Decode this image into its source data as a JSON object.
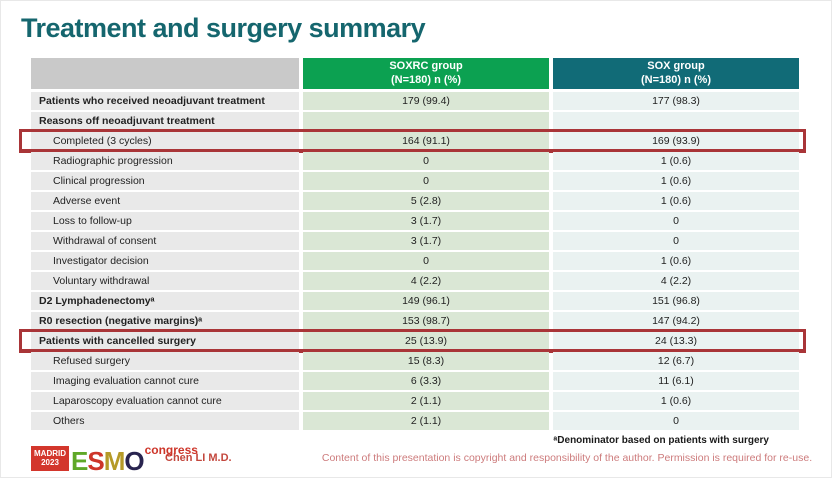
{
  "slide": {
    "title": "Treatment and surgery summary",
    "footnote": "ᵃDenominator based on patients with surgery",
    "copyright": "Content of this presentation is copyright and responsibility of the author.  Permission is required for re-use.",
    "author": "Chen LI M.D."
  },
  "logo": {
    "badge_line1": "MADRID",
    "badge_line2": "2023",
    "letters": [
      "E",
      "S",
      "M",
      "O"
    ],
    "congress": "congress"
  },
  "colors": {
    "title_teal": "#15666e",
    "soxrc_header_green": "#0ca151",
    "sox_header_teal": "#116b77",
    "label_cell_gray": "#e9e9e9",
    "soxrc_cell_green": "#dae7d5",
    "sox_cell_blue": "#eaf2f1",
    "highlight_box_red": "#a93538",
    "copyright_pink": "#cd7b7c",
    "author_red": "#c3473d",
    "logo_red": "#d3362c"
  },
  "table": {
    "columns": [
      {
        "label": "SOXRC group",
        "sub": "(N=180)  n (%)"
      },
      {
        "label": "SOX group",
        "sub": "(N=180)  n (%)"
      }
    ],
    "rows": [
      {
        "label": "Patients who received neoadjuvant treatment",
        "bold": true,
        "indent": false,
        "soxrc": "179 (99.4)",
        "sox": "177 (98.3)",
        "highlight": false
      },
      {
        "label": "Reasons off neoadjuvant treatment",
        "bold": true,
        "indent": false,
        "soxrc": "",
        "sox": "",
        "highlight": false
      },
      {
        "label": "Completed (3 cycles)",
        "bold": false,
        "indent": true,
        "soxrc": "164 (91.1)",
        "sox": "169 (93.9)",
        "highlight": true
      },
      {
        "label": "Radiographic progression",
        "bold": false,
        "indent": true,
        "soxrc": "0",
        "sox": "1 (0.6)",
        "highlight": false
      },
      {
        "label": "Clinical progression",
        "bold": false,
        "indent": true,
        "soxrc": "0",
        "sox": "1 (0.6)",
        "highlight": false
      },
      {
        "label": "Adverse event",
        "bold": false,
        "indent": true,
        "soxrc": "5 (2.8)",
        "sox": "1 (0.6)",
        "highlight": false
      },
      {
        "label": "Loss to follow-up",
        "bold": false,
        "indent": true,
        "soxrc": "3 (1.7)",
        "sox": "0",
        "highlight": false
      },
      {
        "label": "Withdrawal of consent",
        "bold": false,
        "indent": true,
        "soxrc": "3 (1.7)",
        "sox": "0",
        "highlight": false
      },
      {
        "label": "Investigator decision",
        "bold": false,
        "indent": true,
        "soxrc": "0",
        "sox": "1 (0.6)",
        "highlight": false
      },
      {
        "label": "Voluntary withdrawal",
        "bold": false,
        "indent": true,
        "soxrc": "4 (2.2)",
        "sox": "4 (2.2)",
        "highlight": false
      },
      {
        "label": "D2 Lymphadenectomyᵃ",
        "bold": true,
        "indent": false,
        "soxrc": "149 (96.1)",
        "sox": "151 (96.8)",
        "highlight": false
      },
      {
        "label": "R0 resection (negative margins)ᵃ",
        "bold": true,
        "indent": false,
        "soxrc": "153 (98.7)",
        "sox": "147 (94.2)",
        "highlight": false
      },
      {
        "label": "Patients with cancelled surgery",
        "bold": true,
        "indent": false,
        "soxrc": "25 (13.9)",
        "sox": "24 (13.3)",
        "highlight": true
      },
      {
        "label": "Refused surgery",
        "bold": false,
        "indent": true,
        "soxrc": "15 (8.3)",
        "sox": "12 (6.7)",
        "highlight": false
      },
      {
        "label": "Imaging evaluation cannot cure",
        "bold": false,
        "indent": true,
        "soxrc": "6 (3.3)",
        "sox": "11 (6.1)",
        "highlight": false
      },
      {
        "label": "Laparoscopy evaluation cannot cure",
        "bold": false,
        "indent": true,
        "soxrc": "2 (1.1)",
        "sox": "1 (0.6)",
        "highlight": false
      },
      {
        "label": "Others",
        "bold": false,
        "indent": true,
        "soxrc": "2 (1.1)",
        "sox": "0",
        "highlight": false
      }
    ]
  }
}
